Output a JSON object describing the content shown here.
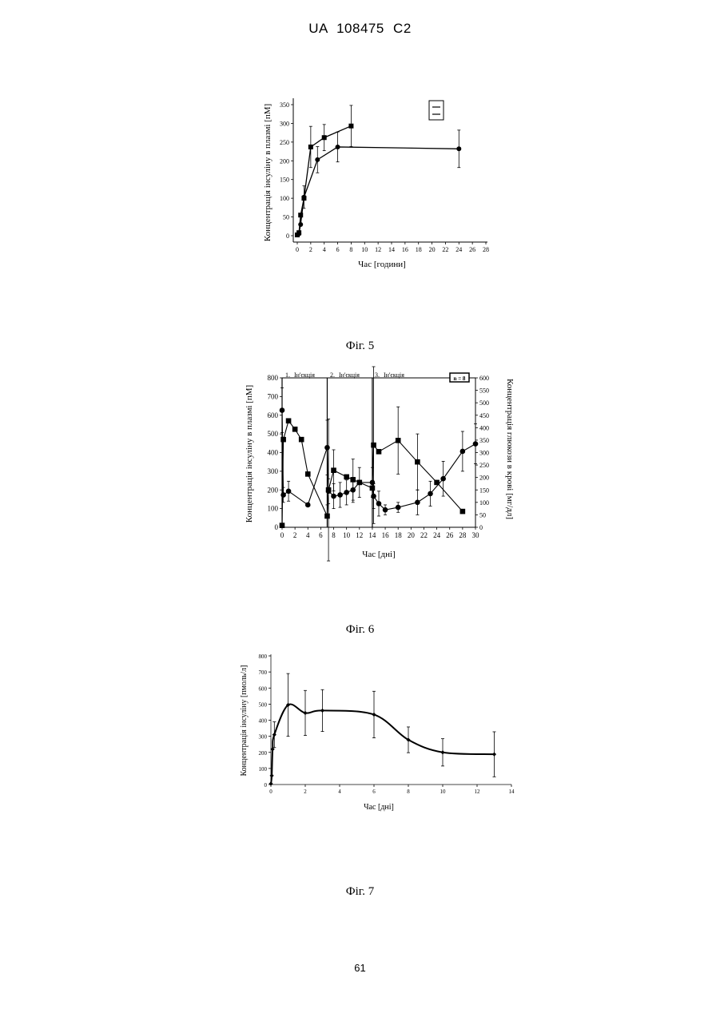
{
  "header": {
    "patent": "UA   108475   C2"
  },
  "page_number": "61",
  "figures": [
    "Фіг. 5",
    "Фіг. 6",
    "Фіг. 7"
  ],
  "chart_data": [
    {
      "type": "line",
      "xlabel": "Час [години]",
      "ylabel": "Концентрація інсуліну в плазмі [пМ]",
      "xlim": [
        0,
        28
      ],
      "ylim": [
        0,
        350
      ],
      "xticks": [
        0,
        2,
        4,
        6,
        8,
        10,
        12,
        14,
        16,
        18,
        20,
        22,
        24,
        26,
        28
      ],
      "yticks": [
        0,
        50,
        100,
        150,
        200,
        250,
        300,
        350
      ],
      "legend": "top-right",
      "series": [
        {
          "marker": "square",
          "points": [
            {
              "x": 0,
              "y": 2
            },
            {
              "x": 0.25,
              "y": 8
            },
            {
              "x": 0.5,
              "y": 55
            },
            {
              "x": 1,
              "y": 100
            },
            {
              "x": 2,
              "y": 237,
              "err": 55
            },
            {
              "x": 4,
              "y": 262,
              "err": 35
            },
            {
              "x": 8,
              "y": 293,
              "err": 55
            }
          ]
        },
        {
          "marker": "circle",
          "points": [
            {
              "x": 0,
              "y": 2
            },
            {
              "x": 0.25,
              "y": 5
            },
            {
              "x": 0.5,
              "y": 30
            },
            {
              "x": 1,
              "y": 103,
              "err": 30
            },
            {
              "x": 3,
              "y": 203,
              "err": 35
            },
            {
              "x": 6,
              "y": 237,
              "err": 40
            },
            {
              "x": 24,
              "y": 232,
              "err": 50
            }
          ]
        }
      ]
    },
    {
      "type": "line",
      "xlabel": "Час [дні]",
      "ylabel": "Концентрація інсуліну в плазмі [пМ]",
      "ylabel_right": "Концентрація глюкози в крові [мг/дл]",
      "xlim": [
        0,
        30
      ],
      "ylim": [
        0,
        800
      ],
      "ylim_right": [
        0,
        600
      ],
      "xticks": [
        0,
        2,
        4,
        6,
        8,
        10,
        12,
        14,
        16,
        18,
        20,
        22,
        24,
        26,
        28,
        30
      ],
      "yticks": [
        0,
        100,
        200,
        300,
        400,
        500,
        600,
        700,
        800
      ],
      "yticks_right": [
        0,
        50,
        100,
        150,
        200,
        250,
        300,
        350,
        400,
        450,
        500,
        550,
        600
      ],
      "annotations": [
        {
          "x": 0,
          "label": "1.",
          "text": "Ін'єкція"
        },
        {
          "x": 7,
          "label": "2.",
          "text": "Ін'єкція"
        },
        {
          "x": 14,
          "label": "3.",
          "text": "Ін'єкція"
        }
      ],
      "legend_text": "n = 8",
      "series": [
        {
          "axis": "left",
          "marker": "square",
          "points": [
            {
              "x": 0,
              "y": 10
            },
            {
              "x": 0.2,
              "y": 470
            },
            {
              "x": 1,
              "y": 570
            },
            {
              "x": 2,
              "y": 525
            },
            {
              "x": 3,
              "y": 470
            },
            {
              "x": 4,
              "y": 285
            },
            {
              "x": 7,
              "y": 60,
              "err": 60
            },
            {
              "x": 7.2,
              "y": 200,
              "err": 380
            },
            {
              "x": 8,
              "y": 305,
              "err": 110
            },
            {
              "x": 10,
              "y": 270
            },
            {
              "x": 11,
              "y": 255,
              "err": 110
            },
            {
              "x": 12,
              "y": 240
            },
            {
              "x": 14,
              "y": 210
            },
            {
              "x": 14.2,
              "y": 440,
              "err": 420
            },
            {
              "x": 15,
              "y": 405
            },
            {
              "x": 18,
              "y": 465,
              "err": 180
            },
            {
              "x": 21,
              "y": 350,
              "err": 150
            },
            {
              "x": 24,
              "y": 240
            },
            {
              "x": 28,
              "y": 85
            }
          ]
        },
        {
          "axis": "right",
          "marker": "circle",
          "points": [
            {
              "x": 0,
              "y": 470,
              "err": 90
            },
            {
              "x": 0.2,
              "y": 130,
              "err": 30
            },
            {
              "x": 1,
              "y": 145,
              "err": 40
            },
            {
              "x": 4,
              "y": 90
            },
            {
              "x": 7,
              "y": 320,
              "err": 110
            },
            {
              "x": 7.2,
              "y": 145,
              "err": 50
            },
            {
              "x": 8,
              "y": 125,
              "err": 50
            },
            {
              "x": 9,
              "y": 130,
              "err": 50
            },
            {
              "x": 10,
              "y": 140,
              "err": 50
            },
            {
              "x": 11,
              "y": 150,
              "err": 50
            },
            {
              "x": 12,
              "y": 180,
              "err": 60
            },
            {
              "x": 14,
              "y": 180,
              "err": 60
            },
            {
              "x": 14.2,
              "y": 125,
              "err": 50
            },
            {
              "x": 15,
              "y": 95,
              "err": 50
            },
            {
              "x": 16,
              "y": 70,
              "err": 20
            },
            {
              "x": 18,
              "y": 80,
              "err": 20
            },
            {
              "x": 21,
              "y": 100,
              "err": 50
            },
            {
              "x": 23,
              "y": 135,
              "err": 50
            },
            {
              "x": 25,
              "y": 195,
              "err": 70
            },
            {
              "x": 28,
              "y": 305,
              "err": 80
            },
            {
              "x": 30,
              "y": 335,
              "err": 80
            }
          ]
        }
      ]
    },
    {
      "type": "line",
      "xlabel": "Час [дні]",
      "ylabel": "Концентрація інсуліну [пмоль/л]",
      "xlim": [
        0,
        14
      ],
      "ylim": [
        0,
        800
      ],
      "xticks": [
        0,
        2,
        4,
        6,
        8,
        10,
        12,
        14
      ],
      "yticks": [
        0,
        100,
        200,
        300,
        400,
        500,
        600,
        700,
        800
      ],
      "series": [
        {
          "marker": "diamond",
          "points": [
            {
              "x": 0,
              "y": 5
            },
            {
              "x": 0.05,
              "y": 55
            },
            {
              "x": 0.1,
              "y": 220
            },
            {
              "x": 0.2,
              "y": 310,
              "err": 80
            },
            {
              "x": 1,
              "y": 495,
              "err": 195
            },
            {
              "x": 2,
              "y": 445,
              "err": 140
            },
            {
              "x": 3,
              "y": 460,
              "err": 130
            },
            {
              "x": 6,
              "y": 435,
              "err": 145
            },
            {
              "x": 8,
              "y": 278,
              "err": 80
            },
            {
              "x": 10,
              "y": 200,
              "err": 85
            },
            {
              "x": 13,
              "y": 188,
              "err": 140
            }
          ]
        }
      ]
    }
  ]
}
